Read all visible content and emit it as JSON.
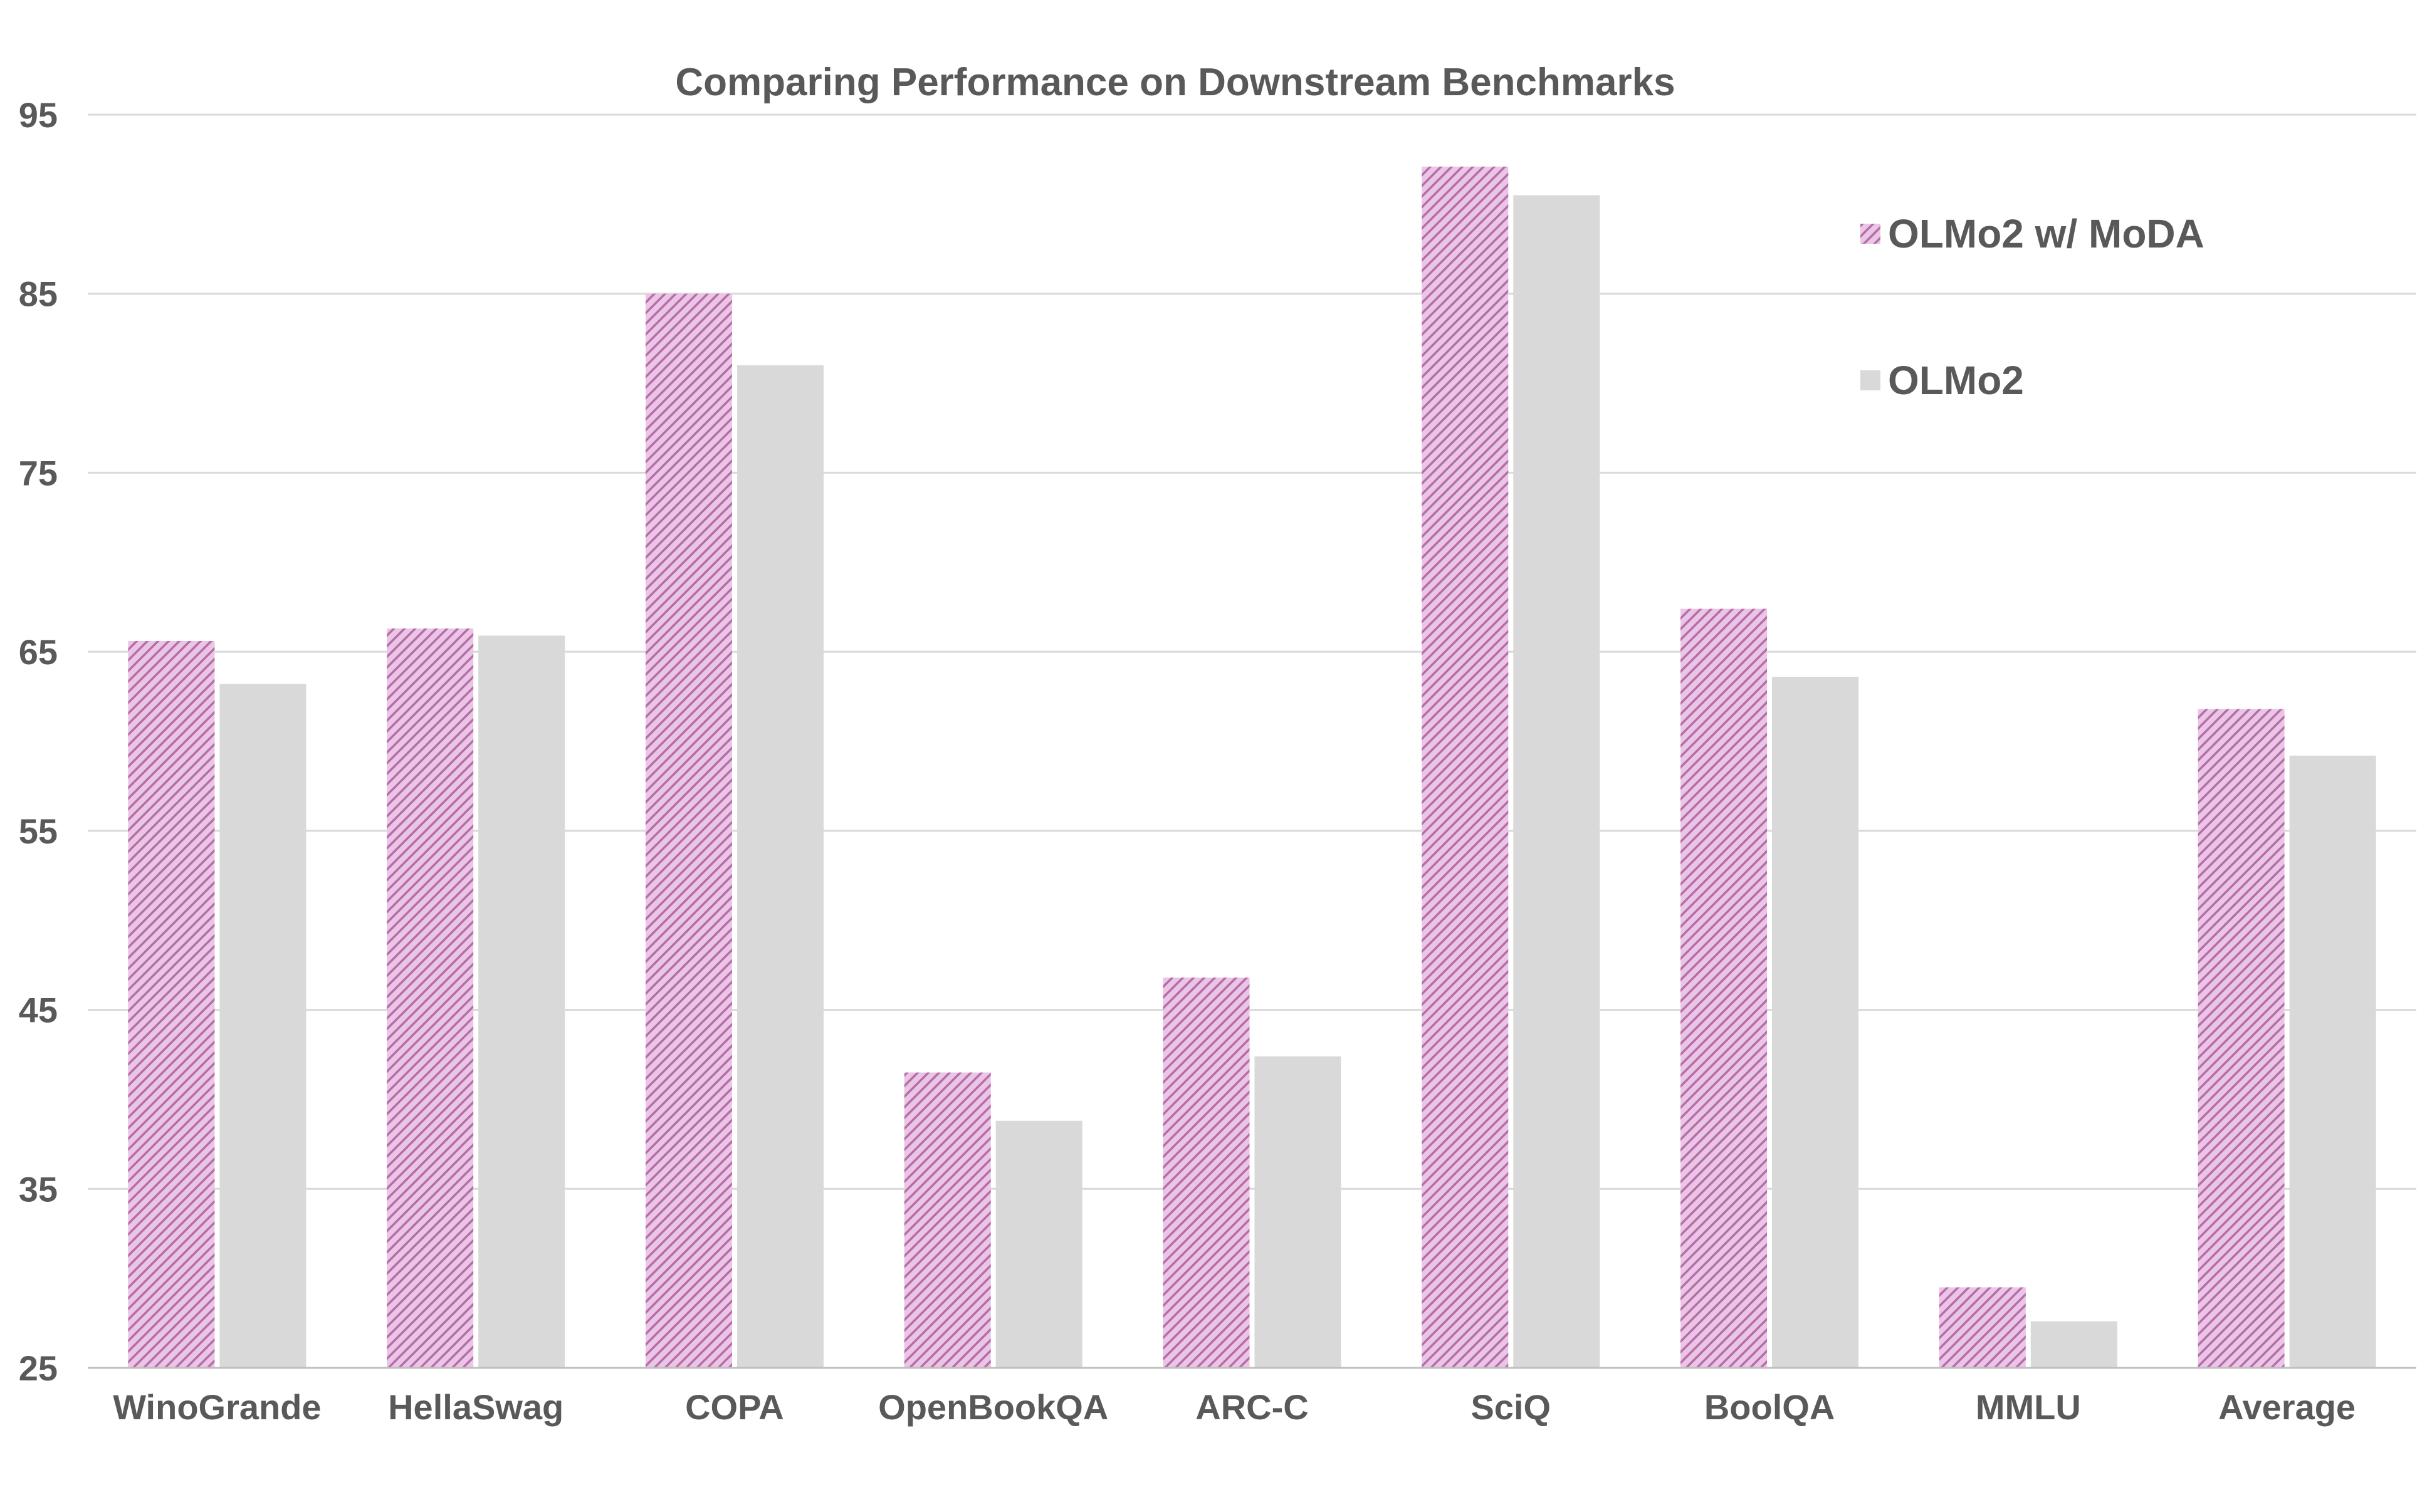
{
  "chart_data": {
    "type": "bar",
    "title": "Comparing Performance on Downstream Benchmarks",
    "xlabel": "",
    "ylabel": "",
    "ylim": [
      25,
      95
    ],
    "yticks": [
      25,
      35,
      45,
      55,
      65,
      75,
      85,
      95
    ],
    "grid": true,
    "legend_position": "top-right",
    "categories": [
      "WinoGrande",
      "HellaSwag",
      "COPA",
      "OpenBookQA",
      "ARC-C",
      "SciQ",
      "BoolQA",
      "MMLU",
      "Average"
    ],
    "series": [
      {
        "name": "OLMo2 w/ MoDA",
        "color": "#c27ab8",
        "pattern": "diagonal-hatch",
        "values": [
          65.6,
          66.3,
          85.0,
          41.5,
          46.8,
          92.1,
          67.4,
          29.5,
          61.8
        ]
      },
      {
        "name": "OLMo2",
        "color": "#d9d9d9",
        "pattern": "solid",
        "values": [
          63.2,
          65.9,
          81.0,
          38.8,
          42.4,
          90.5,
          63.6,
          27.6,
          59.2
        ]
      }
    ]
  }
}
